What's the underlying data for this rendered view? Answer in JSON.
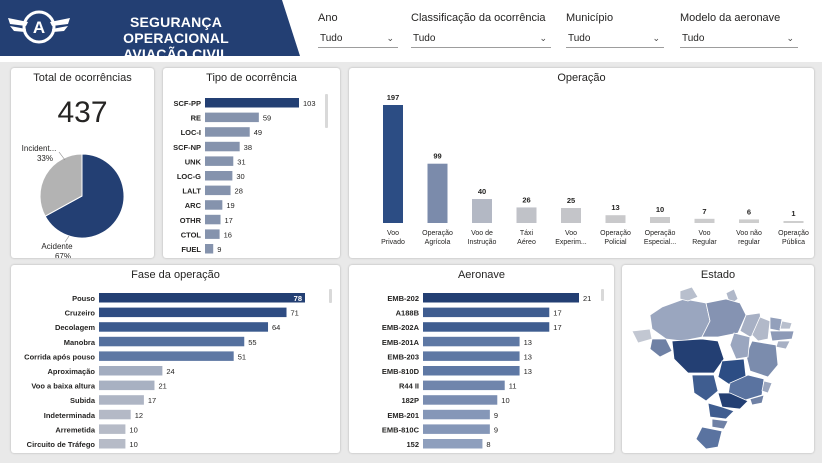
{
  "header": {
    "title_line1": "SEGURANÇA OPERACIONAL",
    "title_line2": "AVIAÇÃO CIVIL",
    "logo_letter": "A",
    "colors": {
      "banner": "#233f73",
      "accent": "#2c4d84"
    }
  },
  "filters": [
    {
      "label": "Ano",
      "value": "Tudo"
    },
    {
      "label": "Classificação da ocorrência",
      "value": "Tudo"
    },
    {
      "label": "Município",
      "value": "Tudo"
    },
    {
      "label": "Modelo da aeronave",
      "value": "Tudo"
    }
  ],
  "total": {
    "title": "Total de ocorrências",
    "value": "437"
  },
  "chart_data": [
    {
      "id": "pie",
      "type": "pie",
      "slices": [
        {
          "label": "Acidente",
          "value": 67,
          "display": "67%",
          "color": "#233f73"
        },
        {
          "label": "Incident...",
          "value": 33,
          "display": "33%",
          "color": "#b3b3b3"
        }
      ]
    },
    {
      "id": "tipo",
      "type": "bar",
      "orientation": "horizontal",
      "title": "Tipo de ocorrência",
      "categories": [
        "SCF-PP",
        "RE",
        "LOC-I",
        "SCF-NP",
        "UNK",
        "LOC-G",
        "LALT",
        "ARC",
        "OTHR",
        "CTOL",
        "FUEL"
      ],
      "values": [
        103,
        59,
        49,
        38,
        31,
        30,
        28,
        19,
        17,
        16,
        9
      ],
      "max": 103,
      "highlight_color": "#233f73",
      "bar_color": "#8593ad"
    },
    {
      "id": "operacao",
      "type": "bar",
      "orientation": "vertical",
      "title": "Operação",
      "categories": [
        "Voo Privado",
        "Operação Agrícola",
        "Voo de Instrução",
        "Táxi Aéreo",
        "Voo Experim...",
        "Operação Policial",
        "Operação Especial...",
        "Voo Regular",
        "Voo não regular",
        "Operação Pública"
      ],
      "label_lines": [
        [
          "Voo",
          "Privado"
        ],
        [
          "Operação",
          "Agrícola"
        ],
        [
          "Voo de",
          "Instrução"
        ],
        [
          "Táxi",
          "Aéreo"
        ],
        [
          "Voo",
          "Experim..."
        ],
        [
          "Operação",
          "Policial"
        ],
        [
          "Operação",
          "Especial..."
        ],
        [
          "Voo",
          "Regular"
        ],
        [
          "Voo não",
          "regular"
        ],
        [
          "Operação",
          "Pública"
        ]
      ],
      "values": [
        197,
        99,
        40,
        26,
        25,
        13,
        10,
        7,
        6,
        1
      ],
      "max": 197,
      "colors": [
        "#2c4d84",
        "#7b8bab",
        "#b3b8c4",
        "#c0c2c8",
        "#c4c5c9",
        "#c9c9cb",
        "#cbcbcc",
        "#cccccd",
        "#cdcdcd",
        "#cecece"
      ]
    },
    {
      "id": "fase",
      "type": "bar",
      "orientation": "horizontal",
      "title": "Fase da operação",
      "categories": [
        "Pouso",
        "Cruzeiro",
        "Decolagem",
        "Manobra",
        "Corrida após pouso",
        "Aproximação",
        "Voo a baixa altura",
        "Subida",
        "Indeterminada",
        "Arremetida",
        "Circuito de Tráfego"
      ],
      "values": [
        78,
        71,
        64,
        55,
        51,
        24,
        21,
        17,
        12,
        10,
        10
      ],
      "max": 78,
      "colors": [
        "#233f73",
        "#2e4c82",
        "#3b5a8e",
        "#54709e",
        "#5e78a4",
        "#a3adc0",
        "#a8b1c2",
        "#aeb5c4",
        "#b4b9c6",
        "#b6bbc7",
        "#b6bbc7"
      ]
    },
    {
      "id": "aeronave",
      "type": "bar",
      "orientation": "horizontal",
      "title": "Aeronave",
      "categories": [
        "EMB-202",
        "A188B",
        "EMB-202A",
        "EMB-201A",
        "EMB-203",
        "EMB-810D",
        "R44 II",
        "182P",
        "EMB-201",
        "EMB-810C",
        "152"
      ],
      "values": [
        21,
        17,
        17,
        13,
        13,
        13,
        11,
        10,
        9,
        9,
        8
      ],
      "max": 21,
      "colors": [
        "#233f73",
        "#3f5d90",
        "#3f5d90",
        "#5e78a4",
        "#5e78a4",
        "#5e78a4",
        "#7085ac",
        "#7a8db1",
        "#8597b8",
        "#8597b8",
        "#8e9fbd"
      ]
    }
  ],
  "map": {
    "title": "Estado"
  }
}
